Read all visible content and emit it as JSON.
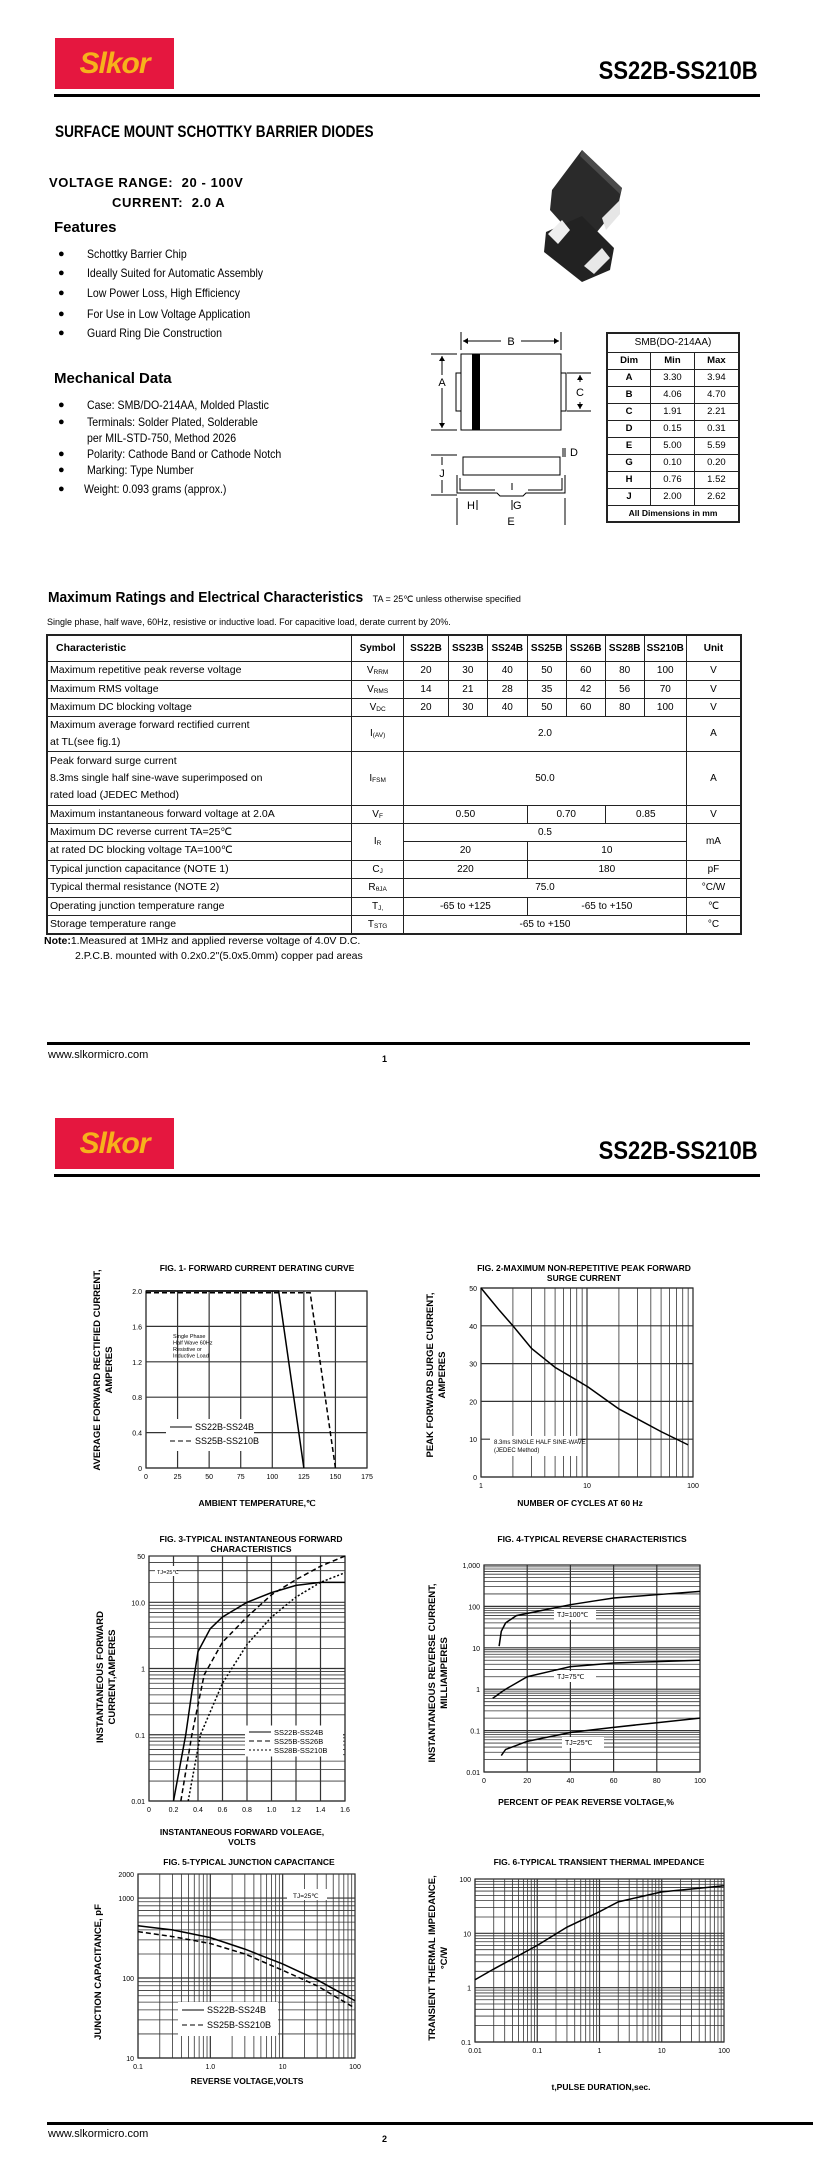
{
  "header": {
    "logo_text": "Slkor",
    "part_range": "SS22B-SS210B",
    "brand_color": "#E5173F",
    "logo_text_color": "#F6B21B"
  },
  "page1": {
    "product_title": "SURFACE MOUNT SCHOTTKY BARRIER DIODES",
    "voltage_label": "VOLTAGE  RANGE:",
    "voltage_value": "20 - 100V",
    "current_label": "CURRENT:",
    "current_value": "2.0 A",
    "features_heading": "Features",
    "features": [
      "Schottky Barrier Chip",
      "Ideally Suited for Automatic Assembly",
      "Low Power Loss, High Efficiency",
      "For Use in Low Voltage Application",
      "Guard Ring Die Construction"
    ],
    "mechanical_heading": "Mechanical Data",
    "mechanical": [
      "Case: SMB/DO-214AA, Molded Plastic",
      "Terminals: Solder Plated, Solderable",
      "per MIL-STD-750, Method 2026",
      "Polarity: Cathode Band or Cathode Notch",
      "Marking: Type Number",
      "Weight: 0.093 grams (approx.)"
    ],
    "drawing_labels": {
      "A": "A",
      "B": "B",
      "C": "C",
      "D": "D",
      "E": "E",
      "G": "G",
      "H": "H",
      "J": "J"
    },
    "dim_table": {
      "title": "SMB(DO-214AA)",
      "headers": [
        "Dim",
        "Min",
        "Max"
      ],
      "rows": [
        [
          "A",
          "3.30",
          "3.94"
        ],
        [
          "B",
          "4.06",
          "4.70"
        ],
        [
          "C",
          "1.91",
          "2.21"
        ],
        [
          "D",
          "0.15",
          "0.31"
        ],
        [
          "E",
          "5.00",
          "5.59"
        ],
        [
          "G",
          "0.10",
          "0.20"
        ],
        [
          "H",
          "0.76",
          "1.52"
        ],
        [
          "J",
          "2.00",
          "2.62"
        ]
      ],
      "footer": "All Dimensions in mm"
    },
    "ratings": {
      "title": "Maximum Ratings and Electrical Characteristics",
      "condition": "TA = 25℃ unless otherwise specified",
      "subtitle": "Single phase, half wave, 60Hz, resistive or inductive load. For capacitive load, derate current by 20%.",
      "headers": [
        "Characteristic",
        "Symbol",
        "SS22B",
        "SS23B",
        "SS24B",
        "SS25B",
        "SS26B",
        "SS28B",
        "SS210B",
        "Unit"
      ],
      "rows": [
        {
          "lines": [
            "Maximum repetitive peak reverse voltage"
          ],
          "sym": "V",
          "sub": "RRM",
          "values": [
            [
              "20",
              1
            ],
            [
              "30",
              1
            ],
            [
              "40",
              1
            ],
            [
              "50",
              1
            ],
            [
              "60",
              1
            ],
            [
              "80",
              1
            ],
            [
              "100",
              1
            ]
          ],
          "unit": "V"
        },
        {
          "lines": [
            "Maximum RMS voltage"
          ],
          "sym": "V",
          "sub": "RMS",
          "values": [
            [
              "14",
              1
            ],
            [
              "21",
              1
            ],
            [
              "28",
              1
            ],
            [
              "35",
              1
            ],
            [
              "42",
              1
            ],
            [
              "56",
              1
            ],
            [
              "70",
              1
            ]
          ],
          "unit": "V"
        },
        {
          "lines": [
            "Maximum DC blocking voltage"
          ],
          "sym": "V",
          "sub": "DC",
          "values": [
            [
              "20",
              1
            ],
            [
              "30",
              1
            ],
            [
              "40",
              1
            ],
            [
              "50",
              1
            ],
            [
              "60",
              1
            ],
            [
              "80",
              1
            ],
            [
              "100",
              1
            ]
          ],
          "unit": "V"
        },
        {
          "lines": [
            "Maximum average forward rectified current",
            "at TL(see fig.1)"
          ],
          "sym": "I",
          "sub": "(AV)",
          "values": [
            [
              "2.0",
              7
            ]
          ],
          "unit": "A"
        },
        {
          "lines": [
            "Peak forward surge current",
            "8.3ms single half sine-wave superimposed on",
            "rated load (JEDEC Method)"
          ],
          "sym": "I",
          "sub": "FSM",
          "values": [
            [
              "50.0",
              7
            ]
          ],
          "unit": "A"
        },
        {
          "lines": [
            "Maximum instantaneous forward voltage at 2.0A"
          ],
          "sym": "V",
          "sub": "F",
          "values": [
            [
              "0.50",
              3
            ],
            [
              "0.70",
              2
            ],
            [
              "0.85",
              2
            ]
          ],
          "unit": "V"
        },
        {
          "lines": [
            "Maximum DC reverse current       TA=25℃"
          ],
          "sym": "I",
          "sub": "R",
          "values": [
            [
              "0.5",
              7
            ]
          ],
          "unit": "mA",
          "rowspan2": true
        },
        {
          "lines": [
            "at rated DC blocking voltage       TA=100℃"
          ],
          "values": [
            [
              "20",
              3
            ],
            [
              "10",
              4
            ]
          ],
          "cont": true
        },
        {
          "lines": [
            "Typical junction capacitance (NOTE 1)"
          ],
          "sym": "C",
          "sub": "J",
          "values": [
            [
              "220",
              3
            ],
            [
              "180",
              4
            ]
          ],
          "unit": "pF"
        },
        {
          "lines": [
            "Typical thermal resistance (NOTE 2)"
          ],
          "sym": "R",
          "sub": "θJA",
          "values": [
            [
              "75.0",
              7
            ]
          ],
          "unit": "°C/W"
        },
        {
          "lines": [
            "Operating junction temperature range"
          ],
          "sym": "T",
          "sub": "J,",
          "values": [
            [
              "-65 to +125",
              3
            ],
            [
              "-65 to +150",
              4
            ]
          ],
          "unit": "℃"
        },
        {
          "lines": [
            "Storage temperature range"
          ],
          "sym": "T",
          "sub": "STG",
          "values": [
            [
              "-65 to +150",
              7
            ]
          ],
          "unit": "°C"
        }
      ]
    },
    "notes_label": "Note:",
    "notes": [
      "1.Measured at 1MHz and applied reverse voltage of 4.0V D.C.",
      "2.P.C.B. mounted with 0.2x0.2\"(5.0x5.0mm) copper pad areas"
    ],
    "footer_url": "www.slkormicro.com",
    "page_number": "1"
  },
  "page2": {
    "footer_url": "www.slkormicro.com",
    "page_number": "2"
  },
  "chart_data": [
    {
      "type": "line",
      "title": [
        "FIG. 1- FORWARD CURRENT DERATING CURVE"
      ],
      "xlabel": [
        "AMBIENT TEMPERATURE,℃"
      ],
      "ylabel": [
        "AVERAGE FORWARD RECTIFIED CURRENT,",
        "AMPERES"
      ],
      "xscale": "linear",
      "yscale": "linear",
      "xlim": [
        0,
        175
      ],
      "ylim": [
        0,
        2.0
      ],
      "xticks": [
        0,
        25,
        50,
        75,
        100,
        125,
        150,
        175
      ],
      "xtick_labels": [
        "0",
        "25",
        "50",
        "75",
        "100",
        "125",
        "150",
        "175"
      ],
      "yticks": [
        0,
        0.4,
        0.8,
        1.2,
        1.6,
        2.0
      ],
      "ytick_labels": [
        "0",
        "0.4",
        "0.8",
        "1.2",
        "1.6",
        "2.0"
      ],
      "grid": true,
      "annotation": [
        "Single Phase",
        "Half Wave 60Hz",
        "Resistive or",
        "Inductive Load"
      ],
      "series": [
        {
          "name": "SS22B-SS24B",
          "style": "solid",
          "points": [
            [
              0,
              2
            ],
            [
              105,
              2
            ],
            [
              125,
              0
            ]
          ]
        },
        {
          "name": "SS25B-SS210B",
          "style": "dashed",
          "points": [
            [
              0,
              1.98
            ],
            [
              130,
              1.98
            ],
            [
              150,
              0
            ]
          ]
        }
      ]
    },
    {
      "type": "line",
      "title": [
        "FIG. 2-MAXIMUM NON-REPETITIVE PEAK FORWARD",
        "SURGE CURRENT"
      ],
      "xlabel": [
        "NUMBER OF CYCLES AT 60 Hz"
      ],
      "ylabel": [
        "PEAK  FORWARD SURGE CURRENT,",
        "AMPERES"
      ],
      "xscale": "log",
      "yscale": "linear",
      "xlim": [
        1,
        100
      ],
      "ylim": [
        0,
        50
      ],
      "xticks": [
        1,
        10,
        100
      ],
      "xtick_labels": [
        "1",
        "10",
        "100"
      ],
      "yticks": [
        0,
        10,
        20,
        30,
        40,
        50
      ],
      "ytick_labels": [
        "0",
        "10",
        "20",
        "30",
        "40",
        "50"
      ],
      "grid": true,
      "annotation": [
        "8.3ms SINGLE HALF SINE-WAVE",
        "(JEDEC Method)"
      ],
      "series": [
        {
          "style": "solid",
          "points": [
            [
              1,
              50
            ],
            [
              1.5,
              44
            ],
            [
              2,
              40
            ],
            [
              3,
              34
            ],
            [
              5,
              29
            ],
            [
              10,
              24
            ],
            [
              20,
              18
            ],
            [
              50,
              12
            ],
            [
              90,
              8.5
            ]
          ]
        }
      ]
    },
    {
      "type": "line",
      "title": [
        "FIG. 3-TYPICAL INSTANTANEOUS FORWARD",
        "CHARACTERISTICS"
      ],
      "xlabel": [
        "INSTANTANEOUS FORWARD VOLEAGE,",
        "VOLTS"
      ],
      "ylabel": [
        "INSTANTANEOUS FORWARD",
        "CURRENT,AMPERES"
      ],
      "xscale": "linear",
      "yscale": "log",
      "xlim": [
        0,
        1.6
      ],
      "ylim": [
        0.01,
        50
      ],
      "xticks": [
        0,
        0.2,
        0.4,
        0.6,
        0.8,
        1.0,
        1.2,
        1.4,
        1.6
      ],
      "xtick_labels": [
        "0",
        "0.2",
        "0.4",
        "0.6",
        "0.8",
        "1.0",
        "1.2",
        "1.4",
        "1.6"
      ],
      "yticks": [
        0.01,
        0.1,
        1,
        10,
        50
      ],
      "ytick_labels": [
        "0.01",
        "0.1",
        "1",
        "10.0",
        "50"
      ],
      "grid": true,
      "annotation": [
        "TJ=25℃"
      ],
      "series": [
        {
          "name": "SS22B-SS24B",
          "style": "solid",
          "points": [
            [
              0.2,
              0.01
            ],
            [
              0.3,
              0.1
            ],
            [
              0.36,
              0.6
            ],
            [
              0.4,
              1.8
            ],
            [
              0.5,
              4
            ],
            [
              0.6,
              6
            ],
            [
              0.8,
              10
            ],
            [
              1.0,
              14
            ],
            [
              1.2,
              18
            ],
            [
              1.4,
              20
            ],
            [
              1.6,
              20
            ]
          ]
        },
        {
          "name": "SS25B-SS26B",
          "style": "dashed",
          "points": [
            [
              0.26,
              0.01
            ],
            [
              0.35,
              0.1
            ],
            [
              0.45,
              0.8
            ],
            [
              0.6,
              2.5
            ],
            [
              0.8,
              6
            ],
            [
              1.0,
              13
            ],
            [
              1.2,
              22
            ],
            [
              1.4,
              35
            ],
            [
              1.6,
              50
            ]
          ]
        },
        {
          "name": "SS28B-SS210B",
          "style": "dotted",
          "points": [
            [
              0.32,
              0.01
            ],
            [
              0.42,
              0.1
            ],
            [
              0.6,
              0.6
            ],
            [
              0.8,
              2.3
            ],
            [
              1.0,
              6
            ],
            [
              1.2,
              12
            ],
            [
              1.4,
              20
            ],
            [
              1.6,
              28
            ]
          ]
        }
      ]
    },
    {
      "type": "line",
      "title": [
        "FIG. 4-TYPICAL REVERSE CHARACTERISTICS"
      ],
      "xlabel": [
        "PERCENT OF PEAK REVERSE VOLTAGE,%"
      ],
      "ylabel": [
        "INSTANTANEOUS REVERSE CURRENT,",
        "MILLIAMPERES"
      ],
      "xscale": "linear",
      "yscale": "log",
      "xlim": [
        0,
        100
      ],
      "ylim": [
        0.01,
        1000
      ],
      "xticks": [
        0,
        20,
        40,
        60,
        80,
        100
      ],
      "xtick_labels": [
        "0",
        "20",
        "40",
        "60",
        "80",
        "100"
      ],
      "yticks": [
        0.01,
        0.1,
        1,
        10,
        100,
        1000
      ],
      "ytick_labels": [
        "0.01",
        "0.1",
        "1",
        "10",
        "100",
        "1,000"
      ],
      "grid": true,
      "series": [
        {
          "name": "TJ=100℃",
          "style": "solid",
          "points": [
            [
              7,
              11
            ],
            [
              8,
              25
            ],
            [
              10,
              40
            ],
            [
              15,
              60
            ],
            [
              40,
              110
            ],
            [
              60,
              160
            ],
            [
              100,
              230
            ]
          ]
        },
        {
          "name": "TJ=75℃",
          "style": "solid",
          "points": [
            [
              4,
              0.6
            ],
            [
              10,
              1
            ],
            [
              20,
              2
            ],
            [
              40,
              3.5
            ],
            [
              60,
              4.3
            ],
            [
              100,
              5
            ]
          ]
        },
        {
          "name": "TJ=25℃",
          "style": "solid",
          "points": [
            [
              8,
              0.025
            ],
            [
              10,
              0.035
            ],
            [
              20,
              0.055
            ],
            [
              40,
              0.09
            ],
            [
              60,
              0.12
            ],
            [
              100,
              0.2
            ]
          ]
        }
      ]
    },
    {
      "type": "line",
      "title": [
        "FIG. 5-TYPICAL JUNCTION CAPACITANCE"
      ],
      "xlabel": [
        "REVERSE VOLTAGE,VOLTS"
      ],
      "ylabel": [
        "JUNCTION CAPACITANCE, pF"
      ],
      "xscale": "log",
      "yscale": "log",
      "xlim": [
        0.1,
        100
      ],
      "ylim": [
        10,
        2000
      ],
      "xticks": [
        0.1,
        1,
        10,
        100
      ],
      "xtick_labels": [
        "0.1",
        "1.0",
        "10",
        "100"
      ],
      "yticks": [
        10,
        100,
        1000,
        2000
      ],
      "ytick_labels": [
        "10",
        "100",
        "1000",
        "2000"
      ],
      "grid": true,
      "annotation": [
        "TJ=25℃"
      ],
      "series": [
        {
          "name": "SS22B-SS24B",
          "style": "solid",
          "points": [
            [
              0.1,
              450
            ],
            [
              0.3,
              400
            ],
            [
              1,
              320
            ],
            [
              3,
              230
            ],
            [
              10,
              150
            ],
            [
              30,
              95
            ],
            [
              100,
              52
            ]
          ]
        },
        {
          "name": "SS25B-SS210B",
          "style": "dashed",
          "points": [
            [
              0.1,
              380
            ],
            [
              0.3,
              330
            ],
            [
              1,
              270
            ],
            [
              3,
              200
            ],
            [
              10,
              125
            ],
            [
              30,
              80
            ],
            [
              100,
              42
            ]
          ]
        }
      ]
    },
    {
      "type": "line",
      "title": [
        "FIG. 6-TYPICAL TRANSIENT THERMAL IMPEDANCE"
      ],
      "xlabel": [
        "t,PULSE DURATION,sec."
      ],
      "ylabel": [
        "TRANSIENT THERMAL IMPEDANCE,",
        "°C/W"
      ],
      "xscale": "log",
      "yscale": "log",
      "xlim": [
        0.01,
        100
      ],
      "ylim": [
        0.1,
        100
      ],
      "xticks": [
        0.01,
        0.1,
        1,
        10,
        100
      ],
      "xtick_labels": [
        "0.01",
        "0.1",
        "1",
        "10",
        "100"
      ],
      "yticks": [
        0.1,
        1,
        10,
        100
      ],
      "ytick_labels": [
        "0.1",
        "1",
        "10",
        "100"
      ],
      "grid": true,
      "series": [
        {
          "style": "solid",
          "points": [
            [
              0.01,
              1.4
            ],
            [
              0.02,
              2.2
            ],
            [
              0.1,
              6
            ],
            [
              0.3,
              13
            ],
            [
              1,
              25
            ],
            [
              2,
              38
            ],
            [
              10,
              58
            ],
            [
              100,
              75
            ]
          ]
        }
      ]
    }
  ]
}
